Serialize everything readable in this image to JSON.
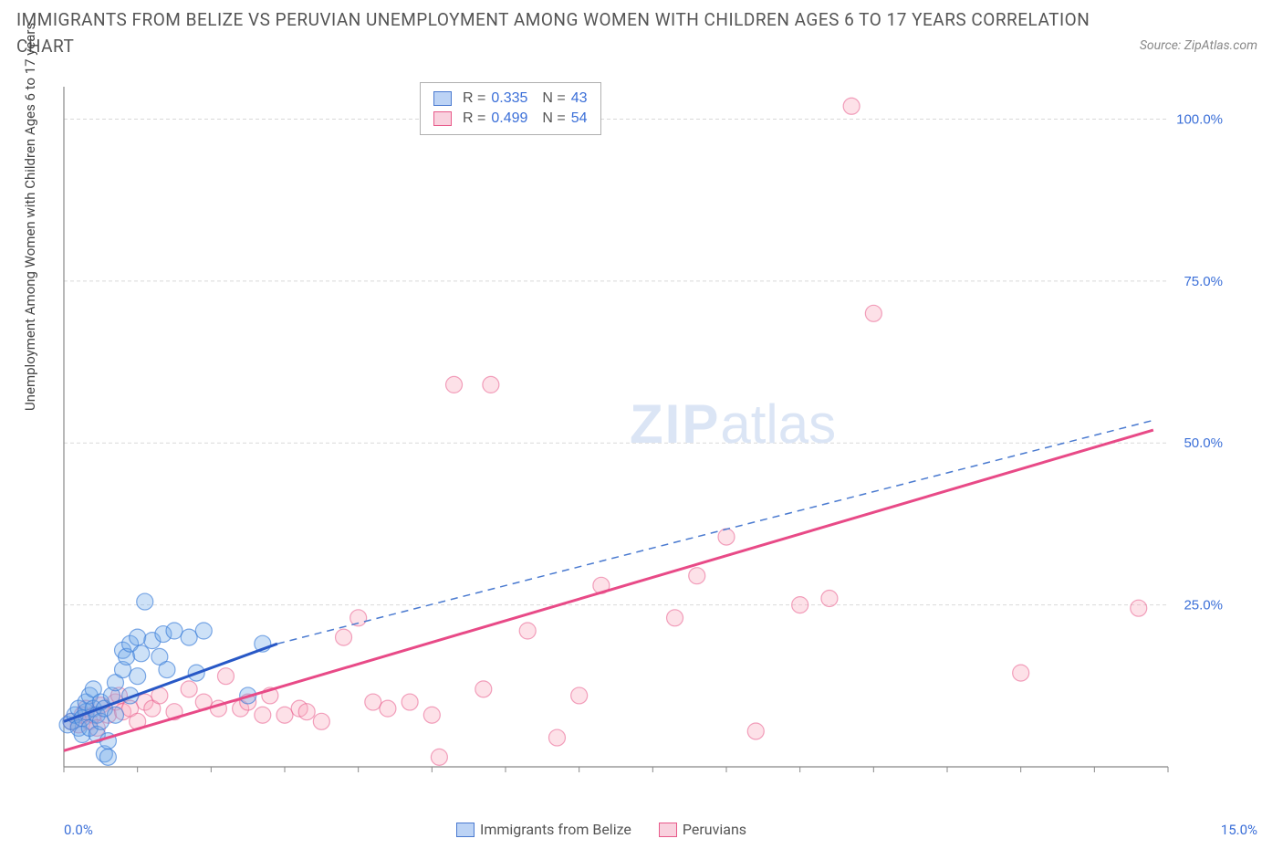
{
  "title": "IMMIGRANTS FROM BELIZE VS PERUVIAN UNEMPLOYMENT AMONG WOMEN WITH CHILDREN AGES 6 TO 17 YEARS CORRELATION CHART",
  "source": "Source: ZipAtlas.com",
  "y_axis_label": "Unemployment Among Women with Children Ages 6 to 17 years",
  "watermark_bold": "ZIP",
  "watermark_light": "atlas",
  "chart": {
    "type": "scatter",
    "background_color": "#ffffff",
    "grid_color": "#d9d9d9",
    "axis_color": "#888888",
    "tick_label_color": "#3b6fd8",
    "x_range": [
      0,
      15
    ],
    "y_range": [
      0,
      105
    ],
    "x_origin_label": "0.0%",
    "x_right_label": "15.0%",
    "y_ticks": [
      25,
      50,
      75,
      100
    ],
    "y_tick_labels": [
      "25.0%",
      "50.0%",
      "75.0%",
      "100.0%"
    ],
    "x_minor_ticks": [
      0,
      1,
      2,
      3,
      4,
      5,
      6,
      7,
      8,
      9,
      10,
      11,
      12,
      13,
      14,
      15
    ],
    "marker_radius": 9,
    "series": [
      {
        "name": "Immigrants from Belize",
        "color_fill": "#6fa8e8",
        "color_stroke": "#3b7dd8",
        "swatch_fill": "#bcd3f5",
        "swatch_stroke": "#4a7ad0",
        "R": "0.335",
        "N": "43",
        "points": [
          [
            0.05,
            6.5
          ],
          [
            0.1,
            7.0
          ],
          [
            0.15,
            8.0
          ],
          [
            0.2,
            6.0
          ],
          [
            0.2,
            9.0
          ],
          [
            0.25,
            7.5
          ],
          [
            0.25,
            5.0
          ],
          [
            0.3,
            8.5
          ],
          [
            0.3,
            10.0
          ],
          [
            0.35,
            11.0
          ],
          [
            0.35,
            6.0
          ],
          [
            0.4,
            9.0
          ],
          [
            0.4,
            12.0
          ],
          [
            0.45,
            8.0
          ],
          [
            0.45,
            5.0
          ],
          [
            0.5,
            10.0
          ],
          [
            0.5,
            7.0
          ],
          [
            0.55,
            9.0
          ],
          [
            0.55,
            2.0
          ],
          [
            0.6,
            4.0
          ],
          [
            0.6,
            1.5
          ],
          [
            0.65,
            11.0
          ],
          [
            0.7,
            13.0
          ],
          [
            0.7,
            8.0
          ],
          [
            0.8,
            15.0
          ],
          [
            0.8,
            18.0
          ],
          [
            0.85,
            17.0
          ],
          [
            0.9,
            11.0
          ],
          [
            0.9,
            19.0
          ],
          [
            1.0,
            14.0
          ],
          [
            1.0,
            20.0
          ],
          [
            1.05,
            17.5
          ],
          [
            1.1,
            25.5
          ],
          [
            1.2,
            19.5
          ],
          [
            1.3,
            17.0
          ],
          [
            1.35,
            20.5
          ],
          [
            1.4,
            15.0
          ],
          [
            1.5,
            21.0
          ],
          [
            1.7,
            20.0
          ],
          [
            1.8,
            14.5
          ],
          [
            1.9,
            21.0
          ],
          [
            2.5,
            11.0
          ],
          [
            2.7,
            19.0
          ]
        ],
        "trend_solid": {
          "x1": 0.0,
          "y1": 7.0,
          "x2": 2.9,
          "y2": 19.0
        },
        "trend_dash": {
          "x1": 2.9,
          "y1": 19.0,
          "x2": 14.8,
          "y2": 53.5
        }
      },
      {
        "name": "Peruvians",
        "color_fill": "#f8a8bd",
        "color_stroke": "#e85a8a",
        "swatch_fill": "#f9d1de",
        "swatch_stroke": "#e85a8a",
        "R": "0.499",
        "N": "54",
        "points": [
          [
            0.1,
            7.0
          ],
          [
            0.2,
            6.5
          ],
          [
            0.25,
            8.0
          ],
          [
            0.3,
            9.0
          ],
          [
            0.35,
            7.0
          ],
          [
            0.4,
            8.0
          ],
          [
            0.45,
            6.0
          ],
          [
            0.5,
            9.5
          ],
          [
            0.6,
            8.0
          ],
          [
            0.7,
            10.0
          ],
          [
            0.75,
            11.0
          ],
          [
            0.8,
            8.5
          ],
          [
            0.9,
            9.0
          ],
          [
            1.0,
            7.0
          ],
          [
            1.1,
            10.0
          ],
          [
            1.2,
            9.0
          ],
          [
            1.3,
            11.0
          ],
          [
            1.5,
            8.5
          ],
          [
            1.7,
            12.0
          ],
          [
            1.9,
            10.0
          ],
          [
            2.1,
            9.0
          ],
          [
            2.2,
            14.0
          ],
          [
            2.4,
            9.0
          ],
          [
            2.5,
            10.0
          ],
          [
            2.7,
            8.0
          ],
          [
            2.8,
            11.0
          ],
          [
            3.0,
            8.0
          ],
          [
            3.2,
            9.0
          ],
          [
            3.3,
            8.5
          ],
          [
            3.5,
            7.0
          ],
          [
            3.8,
            20.0
          ],
          [
            4.0,
            23.0
          ],
          [
            4.2,
            10.0
          ],
          [
            4.4,
            9.0
          ],
          [
            4.7,
            10.0
          ],
          [
            5.0,
            8.0
          ],
          [
            5.1,
            1.5
          ],
          [
            5.3,
            59.0
          ],
          [
            5.7,
            12.0
          ],
          [
            5.8,
            59.0
          ],
          [
            6.3,
            21.0
          ],
          [
            6.7,
            4.5
          ],
          [
            7.0,
            11.0
          ],
          [
            7.3,
            28.0
          ],
          [
            8.3,
            23.0
          ],
          [
            8.6,
            29.5
          ],
          [
            9.0,
            35.5
          ],
          [
            9.4,
            5.5
          ],
          [
            10.0,
            25.0
          ],
          [
            10.4,
            26.0
          ],
          [
            10.7,
            102.0
          ],
          [
            11.0,
            70.0
          ],
          [
            13.0,
            14.5
          ],
          [
            14.6,
            24.5
          ]
        ],
        "trend_solid": {
          "x1": 0.0,
          "y1": 2.5,
          "x2": 14.8,
          "y2": 52.0
        }
      }
    ],
    "legend_top": {
      "r_label": "R =",
      "n_label": "N ="
    },
    "legend_bottom": [
      {
        "label": "Immigrants from Belize",
        "fill": "#bcd3f5",
        "stroke": "#4a7ad0"
      },
      {
        "label": "Peruvians",
        "fill": "#f9d1de",
        "stroke": "#e85a8a"
      }
    ]
  }
}
